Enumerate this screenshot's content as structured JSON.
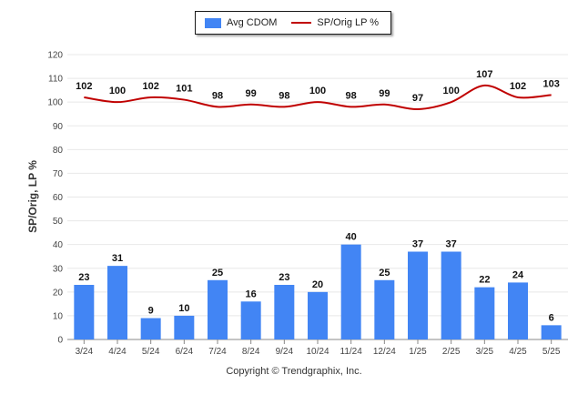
{
  "legend": {
    "bar_label": "Avg CDOM",
    "line_label": "SP/Orig LP %"
  },
  "ylabel": "SP/Orig, LP %",
  "copyright": "Copyright © Trendgraphix, Inc.",
  "colors": {
    "bar": "#4285f4",
    "line": "#c00000",
    "grid": "#e8e8e8",
    "axis": "#888888"
  },
  "chart_data": {
    "type": "bar",
    "categories": [
      "3/24",
      "4/24",
      "5/24",
      "6/24",
      "7/24",
      "8/24",
      "9/24",
      "10/24",
      "11/24",
      "12/24",
      "1/25",
      "2/25",
      "3/25",
      "4/25",
      "5/25"
    ],
    "series": [
      {
        "name": "Avg CDOM",
        "type": "bar",
        "values": [
          23,
          31,
          9,
          10,
          25,
          16,
          23,
          20,
          40,
          25,
          37,
          37,
          22,
          24,
          6
        ]
      },
      {
        "name": "SP/Orig LP %",
        "type": "line",
        "values": [
          102,
          100,
          102,
          101,
          98,
          99,
          98,
          100,
          98,
          99,
          97,
          100,
          107,
          102,
          103
        ]
      }
    ],
    "yticks": [
      0,
      10,
      20,
      30,
      40,
      50,
      60,
      70,
      80,
      90,
      100,
      110,
      120
    ],
    "ylim": [
      0,
      120
    ],
    "ylabel": "SP/Orig, LP %",
    "grid": true,
    "legend_position": "top"
  }
}
